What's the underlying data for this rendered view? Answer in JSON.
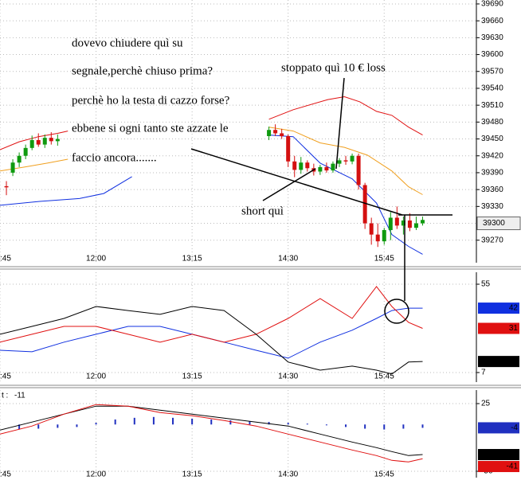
{
  "chart_data": [
    {
      "type": "candlestick",
      "x": [
        650,
        655,
        660,
        665,
        670,
        675,
        680,
        685,
        690,
        855,
        860,
        865,
        870,
        875,
        880,
        885,
        890,
        895,
        900,
        905,
        910,
        915,
        920,
        925,
        930,
        935,
        940,
        945,
        950,
        955,
        960,
        965,
        970,
        975
      ],
      "open": [
        39366,
        39390,
        39408,
        39420,
        39434,
        39448,
        39440,
        39452,
        39446,
        39455,
        39466,
        39460,
        39455,
        39410,
        39395,
        39408,
        39398,
        39392,
        39400,
        39394,
        39406,
        39412,
        39410,
        39420,
        39368,
        39300,
        39280,
        39268,
        39288,
        39310,
        39296,
        39305,
        39292,
        39300
      ],
      "high": [
        39375,
        39414,
        39426,
        39440,
        39456,
        39460,
        39458,
        39462,
        39458,
        39472,
        39476,
        39468,
        39458,
        39420,
        39418,
        39412,
        39406,
        39404,
        39408,
        39410,
        39416,
        39420,
        39424,
        39424,
        39372,
        39310,
        39300,
        39292,
        39320,
        39330,
        39312,
        39318,
        39312,
        39312
      ],
      "low": [
        39350,
        39384,
        39400,
        39414,
        39430,
        39436,
        39434,
        39440,
        39438,
        39448,
        39455,
        39450,
        39400,
        39382,
        39388,
        39392,
        39385,
        39386,
        39390,
        39390,
        39400,
        39404,
        39405,
        39360,
        39290,
        39262,
        39258,
        39262,
        39270,
        39290,
        39280,
        39286,
        39288,
        39296
      ],
      "close": [
        39364,
        39408,
        39420,
        39434,
        39448,
        39440,
        39452,
        39446,
        39450,
        39466,
        39460,
        39455,
        39410,
        39395,
        39408,
        39398,
        39392,
        39400,
        39394,
        39406,
        39412,
        39410,
        39420,
        39368,
        39300,
        39280,
        39268,
        39288,
        39310,
        39296,
        39305,
        39292,
        39300,
        39306
      ],
      "up_color": "#0f9a0f",
      "down_color": "#d41010",
      "overlays": [
        {
          "color": "#e01010",
          "x": [
            645,
            660,
            675,
            690,
            698,
            775,
            855,
            874,
            901,
            914,
            926,
            939,
            951,
            964,
            975
          ],
          "values": [
            39431,
            39445,
            39454,
            39460,
            39464,
            null,
            39485,
            39502,
            39520,
            39525,
            39516,
            39499,
            39492,
            39471,
            39457
          ]
        },
        {
          "color": "#f0a020",
          "x": [
            645,
            664,
            682,
            698,
            775,
            855,
            874,
            895,
            914,
            932,
            951,
            964,
            975
          ],
          "values": [
            39393,
            39400,
            39407,
            39414,
            null,
            39471,
            39464,
            39443,
            39435,
            39421,
            39393,
            39365,
            39351
          ]
        },
        {
          "color": "#1030e0",
          "x": [
            645,
            676,
            707,
            726,
            748,
            800,
            855,
            874,
            895,
            920,
            939,
            951,
            964,
            975
          ],
          "values": [
            39332,
            39339,
            39344,
            39353,
            39383,
            null,
            39457,
            39454,
            39407,
            39379,
            39336,
            39280,
            39259,
            39245
          ]
        }
      ],
      "xlim": [
        645,
        1017
      ],
      "xticks": [
        {
          "value": 645,
          "label": ":45"
        },
        {
          "value": 720,
          "label": "12:00"
        },
        {
          "value": 795,
          "label": "13:15"
        },
        {
          "value": 870,
          "label": "14:30"
        },
        {
          "value": 945,
          "label": "15:45"
        }
      ],
      "ylim": [
        39230,
        39697
      ],
      "yticks": [
        39270,
        39300,
        39330,
        39360,
        39390,
        39420,
        39450,
        39480,
        39510,
        39540,
        39570,
        39600,
        39630,
        39660,
        39690
      ],
      "grid": true,
      "last_price": 39300,
      "annotations": [
        "dovevo chiudere quì su",
        "segnale,perchè chiuso prima?",
        "perchè ho la testa di cazzo forse?",
        "ebbene si ogni tanto ste azzate le",
        "faccio ancora.......",
        "stoppato quì 10 € loss",
        "short quì"
      ]
    },
    {
      "type": "line",
      "x": [
        645,
        670,
        695,
        720,
        745,
        770,
        795,
        820,
        845,
        870,
        895,
        920,
        939,
        951,
        964,
        975
      ],
      "series": [
        {
          "color": "#1030e0",
          "values": [
            19.1,
            18.3,
            23.5,
            27.8,
            32.1,
            32.1,
            27.8,
            23.5,
            19.1,
            14.8,
            23.5,
            30,
            36.4,
            40.7,
            42,
            42
          ]
        },
        {
          "color": "#e01010",
          "values": [
            23.5,
            27.8,
            32.1,
            32.1,
            27.8,
            23.5,
            27.8,
            23.5,
            27.8,
            36.4,
            47.2,
            36.4,
            53.7,
            42.9,
            34.3,
            31
          ]
        },
        {
          "color": "#000000",
          "values": [
            27.8,
            32.1,
            36.4,
            42.9,
            40.7,
            38.6,
            42.9,
            40.7,
            27.8,
            12.7,
            8.3,
            10.5,
            8.3,
            6.2,
            12.7,
            13
          ]
        }
      ],
      "xlim": [
        645,
        1017
      ],
      "xticks": [
        {
          "value": 645,
          "label": ":45"
        },
        {
          "value": 720,
          "label": "12:00"
        },
        {
          "value": 795,
          "label": "13:15"
        },
        {
          "value": 870,
          "label": "14:30"
        },
        {
          "value": 945,
          "label": "15:45"
        }
      ],
      "ylim": [
        1.8,
        61.5
      ],
      "yticks": [
        7,
        55
      ],
      "grid": true
    },
    {
      "type": "line",
      "header_label": "t :",
      "header_value": -11,
      "x": [
        645,
        670,
        695,
        720,
        745,
        770,
        795,
        820,
        845,
        870,
        895,
        920,
        939,
        951,
        964,
        975
      ],
      "histogram": {
        "color": "#2030c0",
        "x": [
          660,
          675,
          690,
          705,
          720,
          735,
          750,
          765,
          780,
          795,
          810,
          825,
          840,
          855,
          870,
          885,
          900,
          915,
          930,
          945,
          960,
          975
        ],
        "values": [
          -6,
          -5,
          -4,
          -3,
          2,
          6,
          8,
          9,
          8,
          7,
          6,
          5,
          4,
          3,
          2,
          1,
          -1,
          -3,
          -5,
          -6,
          -5,
          -4
        ]
      },
      "series": [
        {
          "color": "#000000",
          "values": [
            -6.7,
            2.9,
            12.4,
            22,
            22,
            17.1,
            12.4,
            7.6,
            2.9,
            -1.9,
            -11.5,
            -21,
            -27.7,
            -32.4,
            -37.2,
            -36
          ]
        },
        {
          "color": "#e01010",
          "values": [
            -11.5,
            -1.9,
            12.4,
            23.9,
            22,
            14.3,
            10.5,
            4.8,
            -1.9,
            -11.5,
            -21,
            -30.5,
            -37.2,
            -42.9,
            -44.8,
            -41
          ]
        }
      ],
      "xlim": [
        645,
        1017
      ],
      "xticks": [
        {
          "value": 645,
          "label": ":45"
        },
        {
          "value": 720,
          "label": "12:00"
        },
        {
          "value": 795,
          "label": "13:15"
        },
        {
          "value": 870,
          "label": "14:30"
        },
        {
          "value": 945,
          "label": "15:45"
        }
      ],
      "ylim": [
        -63.6,
        41.2
      ],
      "yticks": [
        -56,
        25
      ],
      "grid": true
    }
  ]
}
